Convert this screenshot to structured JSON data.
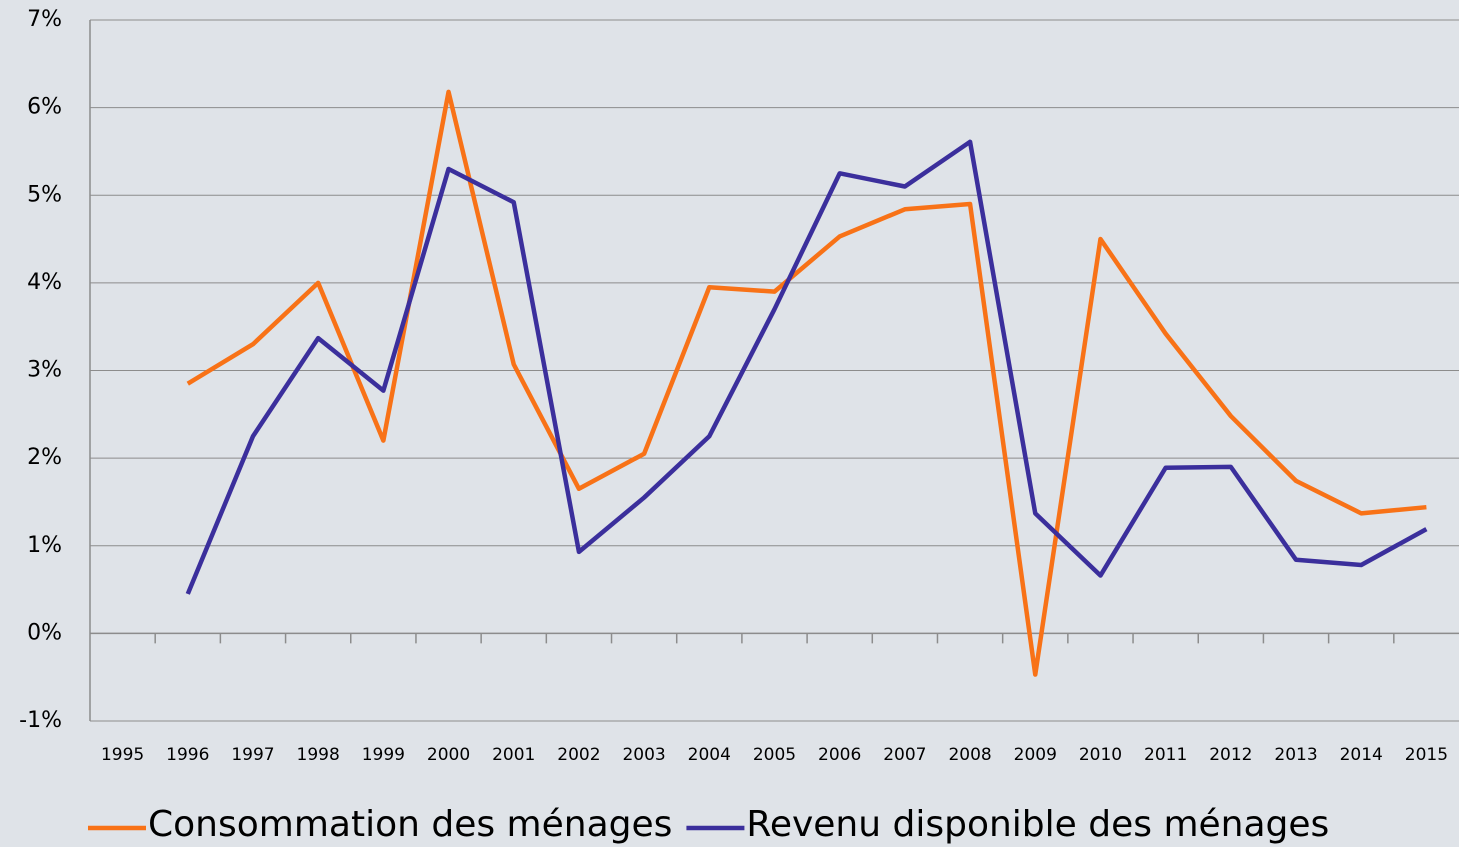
{
  "chart_data": {
    "type": "line",
    "categories": [
      "1995",
      "1996",
      "1997",
      "1998",
      "1999",
      "2000",
      "2001",
      "2002",
      "2003",
      "2004",
      "2005",
      "2006",
      "2007",
      "2008",
      "2009",
      "2010",
      "2011",
      "2012",
      "2013",
      "2014",
      "2015"
    ],
    "series": [
      {
        "name": "Consommation des ménages",
        "color": "#f87217",
        "values": [
          null,
          2.85,
          3.3,
          4.0,
          2.2,
          6.18,
          3.07,
          1.65,
          2.05,
          3.95,
          3.9,
          4.53,
          4.84,
          4.9,
          -0.47,
          4.5,
          3.42,
          2.48,
          1.74,
          1.37,
          1.44
        ]
      },
      {
        "name": "Revenu disponible des ménages",
        "color": "#3b2f9c",
        "values": [
          null,
          0.45,
          2.25,
          3.37,
          2.77,
          5.3,
          4.92,
          0.93,
          1.55,
          2.25,
          3.7,
          5.25,
          5.1,
          5.61,
          1.37,
          0.66,
          1.89,
          1.9,
          0.84,
          0.78,
          1.19
        ]
      }
    ],
    "ylim": [
      -1,
      7
    ],
    "yticks": [
      {
        "value": -1,
        "label": "-1%"
      },
      {
        "value": 0,
        "label": "0%"
      },
      {
        "value": 1,
        "label": "1%"
      },
      {
        "value": 2,
        "label": "2%"
      },
      {
        "value": 3,
        "label": "3%"
      },
      {
        "value": 4,
        "label": "4%"
      },
      {
        "value": 5,
        "label": "5%"
      },
      {
        "value": 6,
        "label": "6%"
      },
      {
        "value": 7,
        "label": "7%"
      }
    ],
    "grid": true,
    "legend": "bottom"
  }
}
